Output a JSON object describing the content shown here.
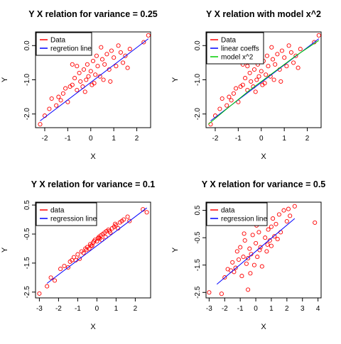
{
  "chart_data": [
    {
      "type": "scatter",
      "title": "Y X relation for variance = 0.25",
      "xlabel": "X",
      "ylabel": "Y",
      "xlim": [
        -2.4,
        2.6
      ],
      "ylim": [
        -2.4,
        0.4
      ],
      "xticks": [
        -2,
        -1,
        0,
        1,
        2
      ],
      "yticks": [
        -2.0,
        -1.0,
        0.0
      ],
      "ytick_labels": [
        "-2.0",
        "-1.0",
        "0.0"
      ],
      "legend": {
        "position": "top-left",
        "entries": [
          {
            "label": "Data",
            "color": "#ff0000"
          },
          {
            "label": "regretion line",
            "color": "#0000ff"
          }
        ]
      },
      "series": [
        {
          "name": "Data",
          "kind": "points",
          "color": "#ff0000",
          "x": [
            -2.2,
            -2.0,
            -1.8,
            -1.7,
            -1.5,
            -1.3,
            -1.2,
            -1.1,
            -1.0,
            -0.9,
            -0.8,
            -0.7,
            -0.6,
            -0.5,
            -0.45,
            -0.35,
            -0.3,
            -0.2,
            -0.15,
            -0.1,
            0.0,
            0.05,
            0.1,
            0.2,
            0.25,
            0.3,
            0.4,
            0.5,
            0.55,
            0.6,
            0.7,
            0.8,
            0.9,
            1.0,
            1.1,
            1.2,
            1.3,
            1.5,
            1.7,
            2.3,
            2.5,
            -1.4,
            -0.6,
            0.45,
            1.4,
            -0.25,
            0.85,
            -0.8,
            1.6,
            0.15
          ],
          "y": [
            -2.3,
            -2.05,
            -1.85,
            -1.55,
            -1.75,
            -1.6,
            -1.4,
            -1.25,
            -1.65,
            -1.2,
            -1.15,
            -0.95,
            -1.3,
            -0.8,
            -1.05,
            -1.2,
            -0.7,
            -1.0,
            -0.55,
            -0.9,
            -0.75,
            -1.15,
            -0.45,
            -0.85,
            -0.3,
            -0.6,
            -0.9,
            -0.4,
            -1.0,
            -0.55,
            -0.25,
            -0.7,
            -0.15,
            -0.35,
            -0.6,
            0.0,
            -0.2,
            -0.3,
            -0.1,
            0.1,
            0.3,
            -1.5,
            -0.6,
            -0.05,
            -0.5,
            -1.35,
            -1.05,
            -0.55,
            -0.65,
            -1.1
          ]
        },
        {
          "name": "regretion line",
          "kind": "line",
          "color": "#0000ff",
          "x": [
            -2.2,
            2.5
          ],
          "y": [
            -2.2,
            0.2
          ]
        }
      ]
    },
    {
      "type": "scatter",
      "title": "Y X relation with model x^2",
      "xlabel": "X",
      "ylabel": "Y",
      "xlim": [
        -2.4,
        2.6
      ],
      "ylim": [
        -2.4,
        0.4
      ],
      "xticks": [
        -2,
        -1,
        0,
        1,
        2
      ],
      "yticks": [
        -2.0,
        -1.0,
        0.0
      ],
      "ytick_labels": [
        "-2.0",
        "-1.0",
        "0.0"
      ],
      "legend": {
        "position": "top-left",
        "entries": [
          {
            "label": "Data",
            "color": "#ff0000"
          },
          {
            "label": "linear coeffs",
            "color": "#0000ff"
          },
          {
            "label": "model x^2",
            "color": "#00cc00"
          }
        ]
      },
      "series": [
        {
          "name": "Data",
          "kind": "points",
          "color": "#ff0000",
          "x": [
            -2.2,
            -2.0,
            -1.8,
            -1.7,
            -1.5,
            -1.3,
            -1.2,
            -1.1,
            -1.0,
            -0.9,
            -0.8,
            -0.7,
            -0.6,
            -0.5,
            -0.45,
            -0.35,
            -0.3,
            -0.2,
            -0.15,
            -0.1,
            0.0,
            0.05,
            0.1,
            0.2,
            0.25,
            0.3,
            0.4,
            0.5,
            0.55,
            0.6,
            0.7,
            0.8,
            0.9,
            1.0,
            1.1,
            1.2,
            1.3,
            1.5,
            1.7,
            2.3,
            2.5,
            -1.4,
            -0.6,
            0.45,
            1.4,
            -0.25,
            0.85,
            -0.8,
            1.6,
            0.15
          ],
          "y": [
            -2.3,
            -2.05,
            -1.85,
            -1.55,
            -1.75,
            -1.6,
            -1.4,
            -1.25,
            -1.65,
            -1.2,
            -1.15,
            -0.95,
            -1.3,
            -0.8,
            -1.05,
            -1.2,
            -0.7,
            -1.0,
            -0.55,
            -0.9,
            -0.75,
            -1.15,
            -0.45,
            -0.85,
            -0.3,
            -0.6,
            -0.9,
            -0.4,
            -1.0,
            -0.55,
            -0.25,
            -0.7,
            -0.15,
            -0.35,
            -0.6,
            0.0,
            -0.2,
            -0.3,
            -0.1,
            0.1,
            0.3,
            -1.5,
            -0.6,
            -0.05,
            -0.5,
            -1.35,
            -1.05,
            -0.55,
            -0.65,
            -1.1
          ]
        },
        {
          "name": "linear coeffs",
          "kind": "line",
          "color": "#0000ff",
          "x": [
            -2.2,
            2.5
          ],
          "y": [
            -2.2,
            0.2
          ]
        },
        {
          "name": "model x^2",
          "kind": "line",
          "color": "#00cc00",
          "x": [
            -2.3,
            -1.5,
            -0.5,
            0.5,
            1.5,
            2.5
          ],
          "y": [
            -2.3,
            -1.85,
            -1.3,
            -0.8,
            -0.3,
            0.15
          ]
        }
      ]
    },
    {
      "type": "scatter",
      "title": "Y X relation for variance = 0.1",
      "xlabel": "X",
      "ylabel": "Y",
      "xlim": [
        -3.2,
        2.8
      ],
      "ylim": [
        -2.7,
        0.6
      ],
      "xticks": [
        -3,
        -2,
        -1,
        0,
        1,
        2
      ],
      "yticks": [
        -2.5,
        -1.5,
        -0.5,
        0.5
      ],
      "ytick_labels": [
        "-2.5",
        "-1.5",
        "-0.5",
        "0.5"
      ],
      "legend": {
        "position": "top-left",
        "entries": [
          {
            "label": "data",
            "color": "#ff0000"
          },
          {
            "label": "regression line",
            "color": "#0000ff"
          }
        ]
      },
      "series": [
        {
          "name": "data",
          "kind": "points",
          "color": "#ff0000",
          "x": [
            -3.0,
            -2.6,
            -2.4,
            -2.2,
            -1.9,
            -1.7,
            -1.5,
            -1.4,
            -1.2,
            -1.1,
            -1.0,
            -0.9,
            -0.8,
            -0.7,
            -0.6,
            -0.55,
            -0.5,
            -0.4,
            -0.35,
            -0.3,
            -0.2,
            -0.15,
            -0.1,
            0.0,
            0.05,
            0.1,
            0.2,
            0.25,
            0.3,
            0.4,
            0.45,
            0.5,
            0.6,
            0.7,
            0.8,
            0.9,
            1.0,
            1.1,
            1.2,
            1.3,
            1.4,
            1.6,
            1.7,
            2.4,
            2.6,
            -0.25,
            0.15,
            0.65,
            -1.3,
            0.95
          ],
          "y": [
            -2.55,
            -2.3,
            -2.0,
            -2.1,
            -1.7,
            -1.6,
            -1.65,
            -1.45,
            -1.3,
            -1.4,
            -1.2,
            -1.35,
            -1.1,
            -1.15,
            -1.0,
            -1.05,
            -0.95,
            -1.0,
            -0.85,
            -0.9,
            -0.8,
            -0.75,
            -0.7,
            -0.75,
            -0.65,
            -0.6,
            -0.55,
            -0.7,
            -0.5,
            -0.45,
            -0.6,
            -0.4,
            -0.35,
            -0.45,
            -0.3,
            -0.25,
            -0.2,
            -0.3,
            -0.1,
            -0.05,
            0.0,
            0.1,
            -0.05,
            0.35,
            0.25,
            -0.9,
            -0.65,
            -0.4,
            -1.4,
            -0.15
          ]
        },
        {
          "name": "regression line",
          "kind": "line",
          "color": "#0000ff",
          "x": [
            -2.6,
            2.6
          ],
          "y": [
            -2.2,
            0.4
          ]
        }
      ]
    },
    {
      "type": "scatter",
      "title": "Y X relation for variance = 0.5",
      "xlabel": "X",
      "ylabel": "Y",
      "xlim": [
        -3.2,
        4.2
      ],
      "ylim": [
        -2.7,
        0.8
      ],
      "xticks": [
        -3,
        -2,
        -1,
        0,
        1,
        2,
        3,
        4
      ],
      "yticks": [
        -2.5,
        -1.5,
        -0.5,
        0.5
      ],
      "ytick_labels": [
        "-2.5",
        "-1.5",
        "-0.5",
        "0.5"
      ],
      "legend": {
        "position": "top-left",
        "entries": [
          {
            "label": "data",
            "color": "#ff0000"
          },
          {
            "label": "regression line",
            "color": "#0000ff"
          }
        ]
      },
      "series": [
        {
          "name": "data",
          "kind": "points",
          "color": "#ff0000",
          "x": [
            -3.0,
            -2.2,
            -2.0,
            -1.8,
            -1.6,
            -1.5,
            -1.3,
            -1.2,
            -1.1,
            -1.0,
            -0.9,
            -0.8,
            -0.7,
            -0.6,
            -0.5,
            -0.4,
            -0.3,
            -0.2,
            -0.1,
            0.0,
            0.1,
            0.2,
            0.3,
            0.4,
            0.5,
            0.6,
            0.7,
            0.8,
            0.9,
            1.0,
            1.1,
            1.2,
            1.3,
            1.5,
            1.6,
            1.8,
            2.0,
            2.2,
            2.5,
            3.8,
            -0.35,
            0.25,
            -1.4,
            0.75,
            1.4,
            -0.75,
            0.05,
            -0.5,
            2.1,
            1.0
          ],
          "y": [
            -2.5,
            -2.55,
            -1.95,
            -1.65,
            -1.7,
            -1.4,
            -1.6,
            -1.0,
            -1.3,
            -0.85,
            -1.9,
            -1.2,
            -0.6,
            -1.45,
            -2.4,
            -0.9,
            -1.1,
            -0.4,
            -1.5,
            -0.7,
            -1.2,
            -0.3,
            -0.85,
            -1.55,
            0.05,
            -0.5,
            -1.0,
            -0.2,
            -0.6,
            -0.1,
            0.2,
            -0.45,
            0.0,
            0.35,
            -0.3,
            0.5,
            0.1,
            0.3,
            0.65,
            0.05,
            -1.8,
            -0.95,
            -1.75,
            -0.75,
            -0.55,
            -0.35,
            -0.05,
            -1.25,
            0.55,
            -0.8
          ]
        },
        {
          "name": "regression line",
          "kind": "line",
          "color": "#0000ff",
          "x": [
            -2.5,
            2.5
          ],
          "y": [
            -2.2,
            0.2
          ]
        }
      ]
    }
  ]
}
